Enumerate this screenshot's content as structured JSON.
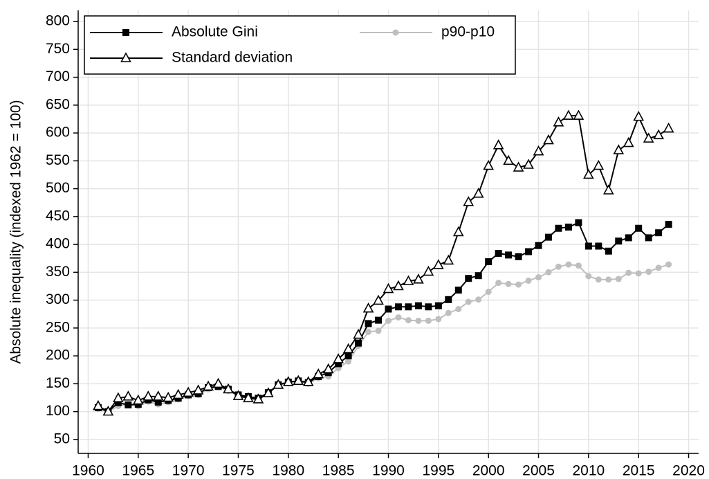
{
  "chart_data": {
    "type": "line",
    "y_label": "Absolute inequality (indexed 1962 = 100)",
    "x": [
      1961,
      1962,
      1963,
      1964,
      1965,
      1966,
      1967,
      1968,
      1969,
      1970,
      1971,
      1972,
      1973,
      1974,
      1975,
      1976,
      1977,
      1978,
      1979,
      1980,
      1981,
      1982,
      1983,
      1984,
      1985,
      1986,
      1987,
      1988,
      1989,
      1990,
      1991,
      1992,
      1993,
      1994,
      1995,
      1996,
      1997,
      1998,
      1999,
      2000,
      2001,
      2002,
      2003,
      2004,
      2005,
      2006,
      2007,
      2008,
      2009,
      2010,
      2011,
      2012,
      2013,
      2014,
      2015,
      2016,
      2017,
      2018
    ],
    "series": [
      {
        "name": "Absolute Gini",
        "color": "#000000",
        "marker": "square",
        "values": [
          107,
          100,
          116,
          112,
          113,
          121,
          117,
          120,
          124,
          130,
          132,
          143,
          145,
          140,
          130,
          127,
          124,
          134,
          148,
          153,
          155,
          152,
          163,
          170,
          186,
          200,
          223,
          258,
          264,
          284,
          288,
          288,
          290,
          288,
          290,
          301,
          318,
          339,
          344,
          369,
          384,
          381,
          378,
          387,
          398,
          413,
          429,
          431,
          439,
          397,
          397,
          388,
          406,
          412,
          429,
          412,
          421,
          436
        ]
      },
      {
        "name": "p90-p10",
        "color": "#bfbfbf",
        "marker": "circle",
        "values": [
          105,
          100,
          110,
          113,
          110,
          118,
          113,
          117,
          122,
          128,
          130,
          140,
          145,
          137,
          130,
          125,
          123,
          135,
          148,
          152,
          155,
          150,
          160,
          163,
          178,
          190,
          218,
          243,
          245,
          263,
          269,
          264,
          263,
          263,
          266,
          277,
          284,
          297,
          301,
          315,
          331,
          329,
          328,
          335,
          341,
          350,
          360,
          364,
          362,
          343,
          337,
          337,
          338,
          349,
          348,
          351,
          358,
          364
        ]
      },
      {
        "name": "Standard deviation",
        "color": "#000000",
        "marker": "triangle",
        "values": [
          110,
          100,
          124,
          127,
          120,
          127,
          127,
          125,
          130,
          134,
          138,
          145,
          150,
          140,
          128,
          124,
          122,
          133,
          148,
          153,
          155,
          153,
          167,
          176,
          194,
          212,
          238,
          285,
          299,
          320,
          325,
          334,
          337,
          351,
          363,
          371,
          422,
          476,
          491,
          541,
          578,
          550,
          538,
          543,
          567,
          587,
          619,
          631,
          631,
          525,
          541,
          497,
          569,
          582,
          629,
          590,
          596,
          608
        ]
      }
    ],
    "xlim": [
      1959,
      2021
    ],
    "xticks": [
      1960,
      1965,
      1970,
      1975,
      1980,
      1985,
      1990,
      1995,
      2000,
      2005,
      2010,
      2015,
      2020
    ],
    "ylim": [
      25,
      820
    ],
    "yticks": [
      50,
      100,
      150,
      200,
      250,
      300,
      350,
      400,
      450,
      500,
      550,
      600,
      650,
      700,
      750,
      800
    ],
    "grid": true,
    "legend": "top-left"
  }
}
